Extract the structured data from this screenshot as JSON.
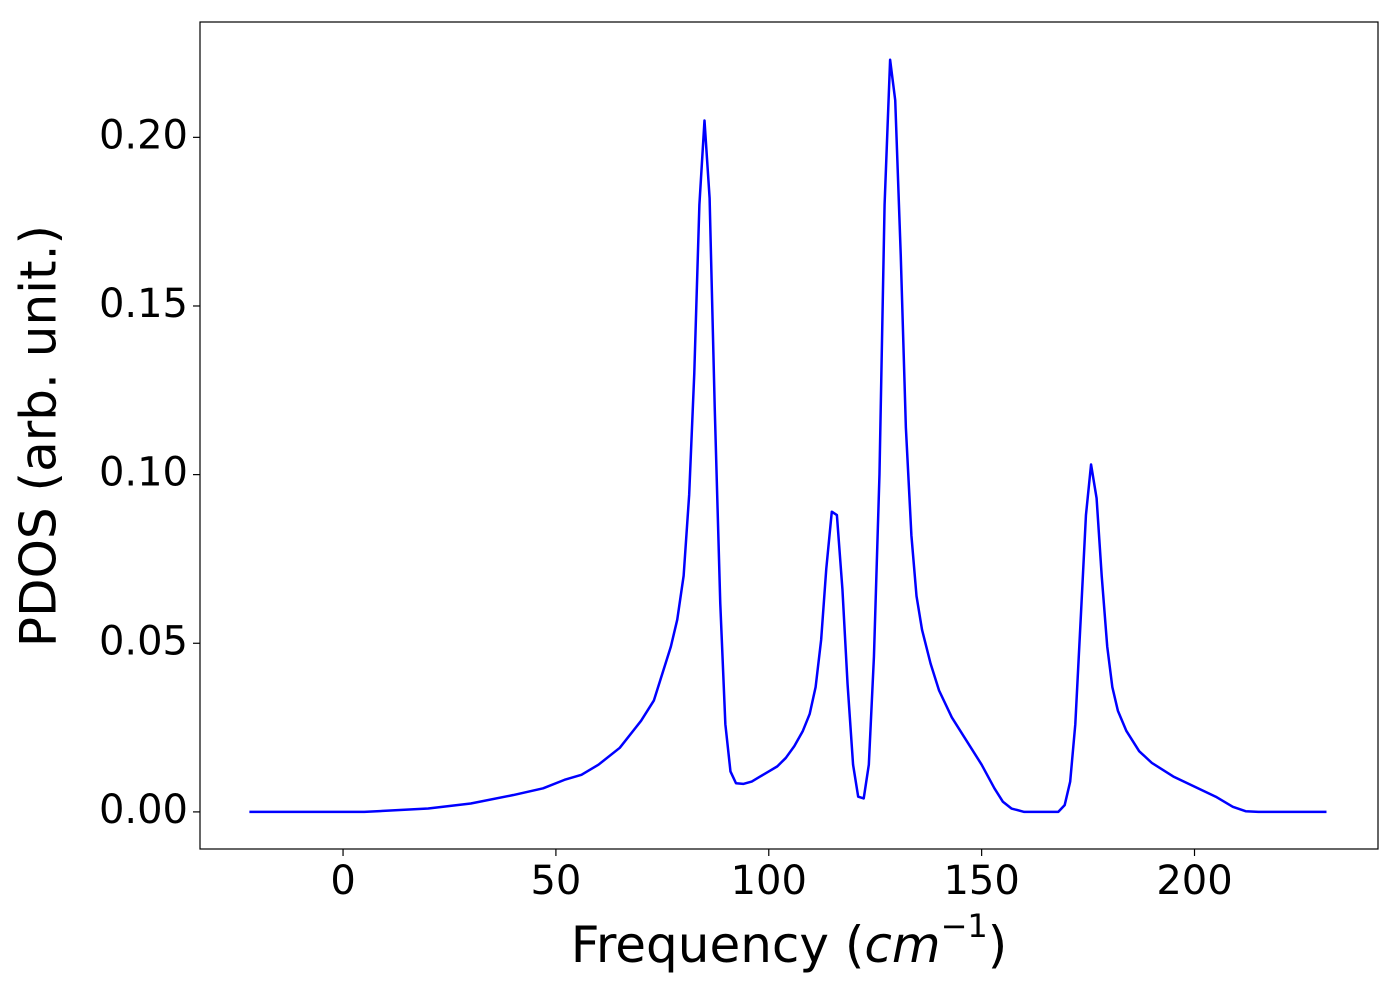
{
  "chart_data": {
    "type": "line",
    "xlabel": [
      "Frequency (",
      "cm",
      "−1",
      ")"
    ],
    "ylabel": "PDOS (arb. unit.)",
    "xlim": [
      -33.6,
      243.1
    ],
    "ylim": [
      -0.011,
      0.2342
    ],
    "xticks": [
      0,
      50,
      100,
      150,
      200
    ],
    "yticks": [
      {
        "value": 0,
        "label": "0.00"
      },
      {
        "value": 0.05,
        "label": "0.05"
      },
      {
        "value": 0.1,
        "label": "0.10"
      },
      {
        "value": 0.15,
        "label": "0.15"
      },
      {
        "value": 0.2,
        "label": "0.20"
      }
    ],
    "grid": false,
    "series": [
      {
        "color": "#0000ff",
        "x": [
          -22,
          5,
          20,
          30,
          40,
          47,
          52,
          56,
          60,
          65,
          70,
          73,
          75,
          77,
          78.5,
          80,
          81.3,
          82.5,
          83.7,
          84.9,
          86.1,
          87.3,
          88.6,
          89.8,
          91,
          92.3,
          94,
          96,
          98,
          100,
          102,
          104,
          106,
          108,
          109.6,
          111,
          112.3,
          113.5,
          114.8,
          116,
          117.3,
          118.5,
          119.8,
          121,
          122.3,
          123.5,
          124.7,
          126,
          127.2,
          128.5,
          129.7,
          131,
          132.2,
          133.5,
          134.7,
          136,
          138,
          140,
          143,
          146,
          150,
          153,
          155,
          157,
          160,
          168,
          169.5,
          170.8,
          172,
          173.3,
          174.5,
          175.7,
          177,
          178.2,
          179.5,
          180.7,
          182,
          184,
          187,
          190,
          195,
          200,
          205,
          209,
          212,
          215,
          231
        ],
        "values": [
          0,
          0,
          0.001,
          0.0025,
          0.005,
          0.007,
          0.0095,
          0.011,
          0.014,
          0.019,
          0.027,
          0.033,
          0.041,
          0.049,
          0.057,
          0.07,
          0.094,
          0.13,
          0.18,
          0.205,
          0.182,
          0.12,
          0.062,
          0.026,
          0.012,
          0.0085,
          0.0083,
          0.009,
          0.0105,
          0.012,
          0.0135,
          0.016,
          0.0195,
          0.024,
          0.029,
          0.037,
          0.051,
          0.072,
          0.089,
          0.088,
          0.066,
          0.038,
          0.014,
          0.0045,
          0.004,
          0.014,
          0.046,
          0.1,
          0.18,
          0.223,
          0.211,
          0.165,
          0.114,
          0.082,
          0.064,
          0.054,
          0.044,
          0.036,
          0.028,
          0.022,
          0.014,
          0.007,
          0.003,
          0.001,
          0,
          0,
          0.002,
          0.009,
          0.026,
          0.058,
          0.088,
          0.103,
          0.093,
          0.07,
          0.049,
          0.037,
          0.03,
          0.024,
          0.018,
          0.0145,
          0.0105,
          0.0075,
          0.0045,
          0.0015,
          0.0002,
          0,
          0
        ]
      }
    ]
  }
}
